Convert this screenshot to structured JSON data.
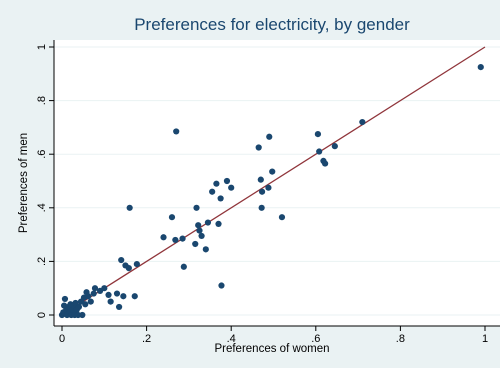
{
  "chart_data": {
    "type": "scatter",
    "title": "Preferences for electricity, by gender",
    "xlabel": "Preferences of women",
    "ylabel": "Preferences of men",
    "xlim": [
      0,
      1
    ],
    "ylim": [
      0,
      1
    ],
    "xticks": [
      0,
      0.2,
      0.4,
      0.6,
      0.8,
      1
    ],
    "yticks": [
      0,
      0.2,
      0.4,
      0.6,
      0.8,
      1
    ],
    "xtick_labels": [
      "0",
      ".2",
      ".4",
      ".6",
      ".8",
      "1"
    ],
    "ytick_labels": [
      "0",
      ".2",
      ".4",
      ".6",
      ".8",
      "1"
    ],
    "grid": "horizontal",
    "legend": "none",
    "colors": {
      "background": "#eaf2f3",
      "plot_area": "#ffffff",
      "marker": "#1a476f",
      "fit_line": "#90353b",
      "grid": "#eaf2f3",
      "title": "#1a476f"
    },
    "fit_line": {
      "x": [
        0,
        1
      ],
      "y": [
        0.0,
        1.0
      ]
    },
    "points": [
      {
        "x": 0.0,
        "y": 0.0
      },
      {
        "x": 0.003,
        "y": 0.01
      },
      {
        "x": 0.005,
        "y": 0.035
      },
      {
        "x": 0.007,
        "y": 0.06
      },
      {
        "x": 0.01,
        "y": 0.02
      },
      {
        "x": 0.012,
        "y": 0.0
      },
      {
        "x": 0.015,
        "y": 0.03
      },
      {
        "x": 0.018,
        "y": 0.01
      },
      {
        "x": 0.02,
        "y": 0.04
      },
      {
        "x": 0.022,
        "y": 0.0
      },
      {
        "x": 0.025,
        "y": 0.02
      },
      {
        "x": 0.028,
        "y": 0.035
      },
      {
        "x": 0.03,
        "y": 0.0
      },
      {
        "x": 0.032,
        "y": 0.045
      },
      {
        "x": 0.035,
        "y": 0.02
      },
      {
        "x": 0.038,
        "y": 0.0
      },
      {
        "x": 0.04,
        "y": 0.03
      },
      {
        "x": 0.045,
        "y": 0.05
      },
      {
        "x": 0.048,
        "y": 0.0
      },
      {
        "x": 0.052,
        "y": 0.065
      },
      {
        "x": 0.055,
        "y": 0.04
      },
      {
        "x": 0.058,
        "y": 0.085
      },
      {
        "x": 0.062,
        "y": 0.07
      },
      {
        "x": 0.068,
        "y": 0.05
      },
      {
        "x": 0.075,
        "y": 0.08
      },
      {
        "x": 0.078,
        "y": 0.1
      },
      {
        "x": 0.09,
        "y": 0.09
      },
      {
        "x": 0.1,
        "y": 0.1
      },
      {
        "x": 0.11,
        "y": 0.075
      },
      {
        "x": 0.115,
        "y": 0.05
      },
      {
        "x": 0.13,
        "y": 0.08
      },
      {
        "x": 0.135,
        "y": 0.03
      },
      {
        "x": 0.14,
        "y": 0.205
      },
      {
        "x": 0.145,
        "y": 0.07
      },
      {
        "x": 0.15,
        "y": 0.185
      },
      {
        "x": 0.158,
        "y": 0.175
      },
      {
        "x": 0.16,
        "y": 0.4
      },
      {
        "x": 0.172,
        "y": 0.07
      },
      {
        "x": 0.177,
        "y": 0.19
      },
      {
        "x": 0.24,
        "y": 0.29
      },
      {
        "x": 0.26,
        "y": 0.365
      },
      {
        "x": 0.268,
        "y": 0.28
      },
      {
        "x": 0.27,
        "y": 0.685
      },
      {
        "x": 0.285,
        "y": 0.285
      },
      {
        "x": 0.288,
        "y": 0.18
      },
      {
        "x": 0.315,
        "y": 0.265
      },
      {
        "x": 0.318,
        "y": 0.4
      },
      {
        "x": 0.322,
        "y": 0.335
      },
      {
        "x": 0.325,
        "y": 0.315
      },
      {
        "x": 0.33,
        "y": 0.295
      },
      {
        "x": 0.34,
        "y": 0.245
      },
      {
        "x": 0.345,
        "y": 0.345
      },
      {
        "x": 0.355,
        "y": 0.46
      },
      {
        "x": 0.365,
        "y": 0.49
      },
      {
        "x": 0.37,
        "y": 0.34
      },
      {
        "x": 0.375,
        "y": 0.435
      },
      {
        "x": 0.377,
        "y": 0.11
      },
      {
        "x": 0.39,
        "y": 0.5
      },
      {
        "x": 0.4,
        "y": 0.475
      },
      {
        "x": 0.465,
        "y": 0.625
      },
      {
        "x": 0.47,
        "y": 0.505
      },
      {
        "x": 0.472,
        "y": 0.4
      },
      {
        "x": 0.473,
        "y": 0.46
      },
      {
        "x": 0.488,
        "y": 0.475
      },
      {
        "x": 0.49,
        "y": 0.665
      },
      {
        "x": 0.497,
        "y": 0.535
      },
      {
        "x": 0.52,
        "y": 0.365
      },
      {
        "x": 0.605,
        "y": 0.675
      },
      {
        "x": 0.608,
        "y": 0.61
      },
      {
        "x": 0.618,
        "y": 0.575
      },
      {
        "x": 0.622,
        "y": 0.565
      },
      {
        "x": 0.645,
        "y": 0.63
      },
      {
        "x": 0.71,
        "y": 0.72
      },
      {
        "x": 0.99,
        "y": 0.925
      }
    ]
  }
}
